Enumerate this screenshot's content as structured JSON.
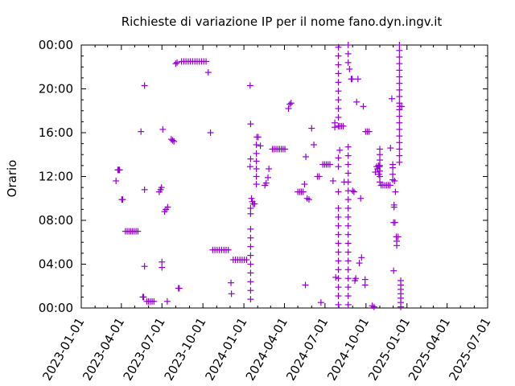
{
  "chart_data": {
    "type": "scatter",
    "title": "Richieste di variazione IP per il nome fano.dyn.ingv.it",
    "xlabel": "",
    "ylabel": "Orario",
    "x_ticks": [
      "2023-01-01",
      "2023-04-01",
      "2023-07-01",
      "2023-10-01",
      "2024-01-01",
      "2024-04-01",
      "2024-07-01",
      "2024-10-01",
      "2025-01-01",
      "2025-04-01",
      "2025-07-01"
    ],
    "y_ticks": [
      "00:00",
      "04:00",
      "08:00",
      "12:00",
      "16:00",
      "20:00",
      "00:00"
    ],
    "xlim": [
      "2023-01-01",
      "2025-07-01"
    ],
    "ylim_hours": [
      0,
      24
    ],
    "grid": false,
    "color": "#9400d3",
    "marker": "plus",
    "series": [
      {
        "points": [
          [
            "2023-03-20",
            11.6
          ],
          [
            "2023-03-24",
            12.6
          ],
          [
            "2023-03-26",
            12.6
          ],
          [
            "2023-03-28",
            12.6
          ],
          [
            "2023-04-02",
            9.9
          ],
          [
            "2023-04-04",
            9.9
          ],
          [
            "2023-04-10",
            7.0
          ],
          [
            "2023-04-14",
            7.0
          ],
          [
            "2023-04-18",
            7.0
          ],
          [
            "2023-04-22",
            7.0
          ],
          [
            "2023-04-26",
            7.0
          ],
          [
            "2023-04-30",
            7.0
          ],
          [
            "2023-05-04",
            7.0
          ],
          [
            "2023-05-08",
            7.0
          ],
          [
            "2023-05-15",
            16.1
          ],
          [
            "2023-05-19",
            1.0
          ],
          [
            "2023-05-21",
            1.0
          ],
          [
            "2023-05-23",
            20.3
          ],
          [
            "2023-05-23",
            10.8
          ],
          [
            "2023-05-23",
            3.8
          ],
          [
            "2023-05-28",
            0.6
          ],
          [
            "2023-06-01",
            0.6
          ],
          [
            "2023-06-05",
            0.6
          ],
          [
            "2023-06-09",
            0.6
          ],
          [
            "2023-06-13",
            0.6
          ],
          [
            "2023-06-25",
            10.6
          ],
          [
            "2023-06-28",
            10.8
          ],
          [
            "2023-06-30",
            11.0
          ],
          [
            "2023-07-01",
            4.2
          ],
          [
            "2023-07-01",
            3.7
          ],
          [
            "2023-07-03",
            16.3
          ],
          [
            "2023-07-07",
            8.8
          ],
          [
            "2023-07-10",
            9.0
          ],
          [
            "2023-07-14",
            9.2
          ],
          [
            "2023-07-13",
            0.6
          ],
          [
            "2023-07-22",
            15.4
          ],
          [
            "2023-07-25",
            15.3
          ],
          [
            "2023-07-28",
            15.2
          ],
          [
            "2023-08-07",
            1.8
          ],
          [
            "2023-08-09",
            1.8
          ],
          [
            "2023-08-01",
            22.3
          ],
          [
            "2023-08-04",
            22.4
          ],
          [
            "2023-08-14",
            22.5
          ],
          [
            "2023-08-19",
            22.5
          ],
          [
            "2023-08-24",
            22.5
          ],
          [
            "2023-08-29",
            22.5
          ],
          [
            "2023-09-03",
            22.5
          ],
          [
            "2023-09-08",
            22.5
          ],
          [
            "2023-09-13",
            22.5
          ],
          [
            "2023-09-18",
            22.5
          ],
          [
            "2023-09-23",
            22.5
          ],
          [
            "2023-09-28",
            22.5
          ],
          [
            "2023-10-03",
            22.5
          ],
          [
            "2023-10-08",
            22.5
          ],
          [
            "2023-10-13",
            21.5
          ],
          [
            "2023-10-18",
            16.0
          ],
          [
            "2023-10-23",
            5.3
          ],
          [
            "2023-10-28",
            5.3
          ],
          [
            "2023-11-02",
            5.3
          ],
          [
            "2023-11-07",
            5.3
          ],
          [
            "2023-11-12",
            5.3
          ],
          [
            "2023-11-17",
            5.3
          ],
          [
            "2023-11-22",
            5.3
          ],
          [
            "2023-11-27",
            5.3
          ],
          [
            "2023-12-03",
            2.3
          ],
          [
            "2023-12-04",
            1.3
          ],
          [
            "2023-12-08",
            4.4
          ],
          [
            "2023-12-13",
            4.4
          ],
          [
            "2023-12-18",
            4.4
          ],
          [
            "2023-12-23",
            4.4
          ],
          [
            "2023-12-28",
            4.4
          ],
          [
            "2024-01-02",
            4.4
          ],
          [
            "2024-01-07",
            4.4
          ],
          [
            "2024-01-15",
            20.3
          ],
          [
            "2024-01-16",
            16.8
          ],
          [
            "2024-01-15",
            12.9
          ],
          [
            "2024-01-16",
            13.6
          ],
          [
            "2024-01-16",
            0.8
          ],
          [
            "2024-01-16",
            1.6
          ],
          [
            "2024-01-16",
            2.4
          ],
          [
            "2024-01-16",
            3.2
          ],
          [
            "2024-01-16",
            4.0
          ],
          [
            "2024-01-16",
            4.8
          ],
          [
            "2024-01-16",
            5.6
          ],
          [
            "2024-01-16",
            6.4
          ],
          [
            "2024-01-16",
            7.2
          ],
          [
            "2024-01-16",
            8.6
          ],
          [
            "2024-01-16",
            9.1
          ],
          [
            "2024-01-18",
            10.0
          ],
          [
            "2024-01-20",
            9.7
          ],
          [
            "2024-01-22",
            9.5
          ],
          [
            "2024-01-25",
            9.5
          ],
          [
            "2024-01-30",
            15.6
          ],
          [
            "2024-02-02",
            15.6
          ],
          [
            "2024-01-29",
            14.9
          ],
          [
            "2024-01-29",
            14.1
          ],
          [
            "2024-01-29",
            13.4
          ],
          [
            "2024-01-29",
            12.7
          ],
          [
            "2024-01-29",
            12.0
          ],
          [
            "2024-01-29",
            11.3
          ],
          [
            "2024-02-07",
            14.8
          ],
          [
            "2024-02-17",
            11.2
          ],
          [
            "2024-02-20",
            11.4
          ],
          [
            "2024-02-26",
            12.7
          ],
          [
            "2024-02-24",
            11.9
          ],
          [
            "2024-03-05",
            14.5
          ],
          [
            "2024-03-09",
            14.5
          ],
          [
            "2024-03-13",
            14.5
          ],
          [
            "2024-03-17",
            14.5
          ],
          [
            "2024-03-21",
            14.5
          ],
          [
            "2024-03-25",
            14.5
          ],
          [
            "2024-03-29",
            14.5
          ],
          [
            "2024-04-02",
            14.5
          ],
          [
            "2024-04-10",
            18.2
          ],
          [
            "2024-04-13",
            18.6
          ],
          [
            "2024-04-16",
            18.7
          ],
          [
            "2024-05-01",
            10.6
          ],
          [
            "2024-05-05",
            10.6
          ],
          [
            "2024-05-09",
            10.6
          ],
          [
            "2024-05-13",
            10.6
          ],
          [
            "2024-05-16",
            11.3
          ],
          [
            "2024-05-19",
            13.8
          ],
          [
            "2024-05-18",
            2.1
          ],
          [
            "2024-05-22",
            10.0
          ],
          [
            "2024-05-26",
            9.9
          ],
          [
            "2024-06-01",
            16.4
          ],
          [
            "2024-06-06",
            14.9
          ],
          [
            "2024-06-14",
            12.0
          ],
          [
            "2024-06-18",
            12.0
          ],
          [
            "2024-06-22",
            0.5
          ],
          [
            "2024-06-26",
            13.1
          ],
          [
            "2024-06-30",
            13.1
          ],
          [
            "2024-07-04",
            13.1
          ],
          [
            "2024-07-08",
            13.1
          ],
          [
            "2024-07-12",
            13.1
          ],
          [
            "2024-07-19",
            11.6
          ],
          [
            "2024-07-23",
            16.9
          ],
          [
            "2024-07-23",
            16.5
          ],
          [
            "2024-07-25",
            2.8
          ],
          [
            "2024-07-31",
            0.3
          ],
          [
            "2024-07-31",
            1.1
          ],
          [
            "2024-07-31",
            1.9
          ],
          [
            "2024-07-31",
            2.7
          ],
          [
            "2024-07-31",
            3.5
          ],
          [
            "2024-07-31",
            4.3
          ],
          [
            "2024-07-31",
            5.1
          ],
          [
            "2024-07-31",
            5.9
          ],
          [
            "2024-07-31",
            6.7
          ],
          [
            "2024-07-31",
            7.5
          ],
          [
            "2024-07-31",
            8.3
          ],
          [
            "2024-07-31",
            9.1
          ],
          [
            "2024-07-31",
            10.6
          ],
          [
            "2024-07-31",
            12.9
          ],
          [
            "2024-07-31",
            13.7
          ],
          [
            "2024-07-31",
            16.6
          ],
          [
            "2024-07-31",
            17.4
          ],
          [
            "2024-07-31",
            18.2
          ],
          [
            "2024-07-31",
            19.0
          ],
          [
            "2024-07-31",
            19.8
          ],
          [
            "2024-07-31",
            20.6
          ],
          [
            "2024-07-31",
            21.4
          ],
          [
            "2024-07-31",
            22.2
          ],
          [
            "2024-07-31",
            23.0
          ],
          [
            "2024-07-31",
            23.8
          ],
          [
            "2024-08-03",
            14.4
          ],
          [
            "2024-08-03",
            16.6
          ],
          [
            "2024-08-07",
            16.6
          ],
          [
            "2024-08-11",
            16.6
          ],
          [
            "2024-08-13",
            11.5
          ],
          [
            "2024-08-22",
            0.3
          ],
          [
            "2024-08-22",
            1.1
          ],
          [
            "2024-08-22",
            1.9
          ],
          [
            "2024-08-22",
            2.7
          ],
          [
            "2024-08-22",
            3.5
          ],
          [
            "2024-08-22",
            4.3
          ],
          [
            "2024-08-22",
            5.1
          ],
          [
            "2024-08-22",
            5.9
          ],
          [
            "2024-08-22",
            6.7
          ],
          [
            "2024-08-22",
            7.5
          ],
          [
            "2024-08-22",
            8.3
          ],
          [
            "2024-08-22",
            9.1
          ],
          [
            "2024-08-22",
            9.9
          ],
          [
            "2024-08-22",
            10.7
          ],
          [
            "2024-08-22",
            11.5
          ],
          [
            "2024-08-22",
            12.3
          ],
          [
            "2024-08-22",
            13.1
          ],
          [
            "2024-08-22",
            13.9
          ],
          [
            "2024-08-22",
            14.7
          ],
          [
            "2024-08-22",
            22.4
          ],
          [
            "2024-08-22",
            23.2
          ],
          [
            "2024-08-22",
            24.0
          ],
          [
            "2024-08-25",
            21.8
          ],
          [
            "2024-08-29",
            20.9
          ],
          [
            "2024-08-31",
            20.9
          ],
          [
            "2024-09-06",
            2.5
          ],
          [
            "2024-09-08",
            2.7
          ],
          [
            "2024-09-01",
            10.7
          ],
          [
            "2024-09-04",
            10.6
          ],
          [
            "2024-09-13",
            20.9
          ],
          [
            "2024-09-19",
            10.0
          ],
          [
            "2024-09-21",
            4.6
          ],
          [
            "2024-09-10",
            18.8
          ],
          [
            "2024-09-16",
            4.1
          ],
          [
            "2024-09-25",
            18.4
          ],
          [
            "2024-09-29",
            2.6
          ],
          [
            "2024-09-29",
            2.1
          ],
          [
            "2024-09-30",
            16.1
          ],
          [
            "2024-10-04",
            16.1
          ],
          [
            "2024-10-08",
            16.1
          ],
          [
            "2024-10-15",
            0.2
          ],
          [
            "2024-10-19",
            0.1
          ],
          [
            "2024-10-22",
            12.4
          ],
          [
            "2024-10-25",
            12.9
          ],
          [
            "2024-10-27",
            12.7
          ],
          [
            "2024-10-29",
            13.0
          ],
          [
            "2024-10-30",
            12.2
          ],
          [
            "2024-10-31",
            12.9
          ],
          [
            "2024-11-01",
            11.5
          ],
          [
            "2024-11-01",
            12.0
          ],
          [
            "2024-11-01",
            12.5
          ],
          [
            "2024-11-01",
            13.0
          ],
          [
            "2024-11-01",
            13.5
          ],
          [
            "2024-11-01",
            14.0
          ],
          [
            "2024-11-01",
            14.5
          ],
          [
            "2024-11-04",
            11.2
          ],
          [
            "2024-11-08",
            11.2
          ],
          [
            "2024-11-12",
            11.2
          ],
          [
            "2024-11-16",
            11.2
          ],
          [
            "2024-11-20",
            11.2
          ],
          [
            "2024-11-24",
            11.2
          ],
          [
            "2024-11-25",
            14.6
          ],
          [
            "2024-11-28",
            19.1
          ],
          [
            "2024-11-30",
            12.2
          ],
          [
            "2024-11-30",
            12.8
          ],
          [
            "2024-11-30",
            13.1
          ],
          [
            "2024-11-30",
            11.7
          ],
          [
            "2024-12-06",
            10.6
          ],
          [
            "2024-12-04",
            11.6
          ],
          [
            "2024-12-03",
            9.4
          ],
          [
            "2024-12-03",
            9.2
          ],
          [
            "2024-12-02",
            7.8
          ],
          [
            "2024-12-05",
            7.8
          ],
          [
            "2024-12-02",
            3.4
          ],
          [
            "2024-12-08",
            6.5
          ],
          [
            "2024-12-12",
            6.5
          ],
          [
            "2024-12-09",
            6.1
          ],
          [
            "2024-12-09",
            5.7
          ],
          [
            "2024-12-16",
            18.4
          ],
          [
            "2024-12-20",
            18.4
          ],
          [
            "2024-12-18",
            0.1
          ],
          [
            "2024-12-18",
            0.5
          ],
          [
            "2024-12-18",
            0.9
          ],
          [
            "2024-12-18",
            1.3
          ],
          [
            "2024-12-18",
            1.7
          ],
          [
            "2024-12-18",
            2.1
          ],
          [
            "2024-12-18",
            2.5
          ],
          [
            "2024-12-15",
            13.3
          ],
          [
            "2024-12-15",
            13.9
          ],
          [
            "2024-12-15",
            14.5
          ],
          [
            "2024-12-15",
            15.1
          ],
          [
            "2024-12-15",
            15.7
          ],
          [
            "2024-12-15",
            16.3
          ],
          [
            "2024-12-15",
            16.9
          ],
          [
            "2024-12-15",
            17.5
          ],
          [
            "2024-12-15",
            18.1
          ],
          [
            "2024-12-15",
            18.7
          ],
          [
            "2024-12-15",
            19.3
          ],
          [
            "2024-12-15",
            19.9
          ],
          [
            "2024-12-15",
            20.5
          ],
          [
            "2024-12-15",
            21.1
          ],
          [
            "2024-12-15",
            21.7
          ],
          [
            "2024-12-15",
            22.3
          ],
          [
            "2024-12-15",
            22.9
          ],
          [
            "2024-12-15",
            23.5
          ],
          [
            "2024-12-15",
            24.0
          ]
        ]
      }
    ]
  }
}
